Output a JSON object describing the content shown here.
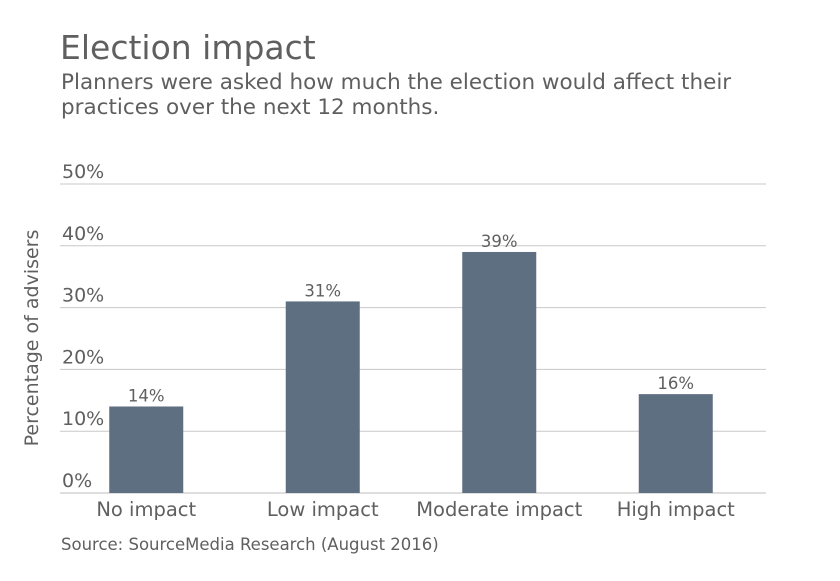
{
  "title": "Election impact",
  "subtitle": "Planners were asked how much the election would affect their practices over the next 12 months.",
  "source": "Source: SourceMedia Research (August 2016)",
  "colors": {
    "bar": "#5f6f82",
    "grid": "#c8c8c8",
    "text": "#5f5f5f"
  },
  "chart_data": {
    "type": "bar",
    "categories": [
      "No impact",
      "Low impact",
      "Moderate impact",
      "High impact"
    ],
    "values": [
      14,
      31,
      39,
      16
    ],
    "value_labels": [
      "14%",
      "31%",
      "39%",
      "16%"
    ],
    "ylabel": "Percentage of advisers",
    "xlabel": "",
    "ylim": [
      0,
      50
    ],
    "yticks": [
      0,
      10,
      20,
      30,
      40,
      50
    ],
    "ytick_labels": [
      "0%",
      "10%",
      "20%",
      "30%",
      "40%",
      "50%"
    ],
    "grid": true,
    "legend": "none"
  }
}
